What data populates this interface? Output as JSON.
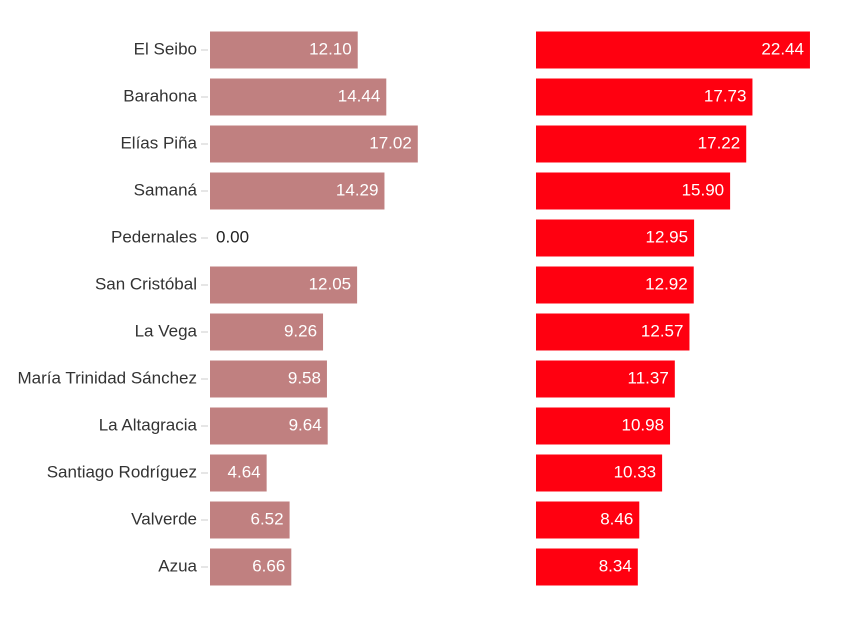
{
  "chart_data": [
    {
      "type": "bar",
      "orientation": "horizontal",
      "categories": [
        "El Seibo",
        "Barahona",
        "Elías Piña",
        "Samaná",
        "Pedernales",
        "San Cristóbal",
        "La Vega",
        "María Trinidad Sánchez",
        "La Altagracia",
        "Santiago Rodríguez",
        "Valverde",
        "Azua"
      ],
      "values": [
        12.1,
        14.44,
        17.02,
        14.29,
        0,
        12.05,
        9.26,
        9.58,
        9.64,
        4.64,
        6.52,
        6.66
      ],
      "value_labels": [
        "12.10",
        "14.44",
        "17.02",
        "14.29",
        "0.00",
        "12.05",
        "9.26",
        "9.58",
        "9.64",
        "4.64",
        "6.52",
        "6.66"
      ],
      "color": "#c08080",
      "xlim": [
        0,
        24
      ]
    },
    {
      "type": "bar",
      "orientation": "horizontal",
      "values": [
        22.44,
        17.73,
        17.22,
        15.9,
        12.95,
        12.92,
        12.57,
        11.37,
        10.98,
        10.33,
        8.46,
        8.34
      ],
      "value_labels": [
        "22.44",
        "17.73",
        "17.22",
        "15.90",
        "12.95",
        "12.92",
        "12.57",
        "11.37",
        "10.98",
        "10.33",
        "8.46",
        "8.34"
      ],
      "color": "#ff0010",
      "xlim": [
        0,
        24
      ]
    }
  ]
}
